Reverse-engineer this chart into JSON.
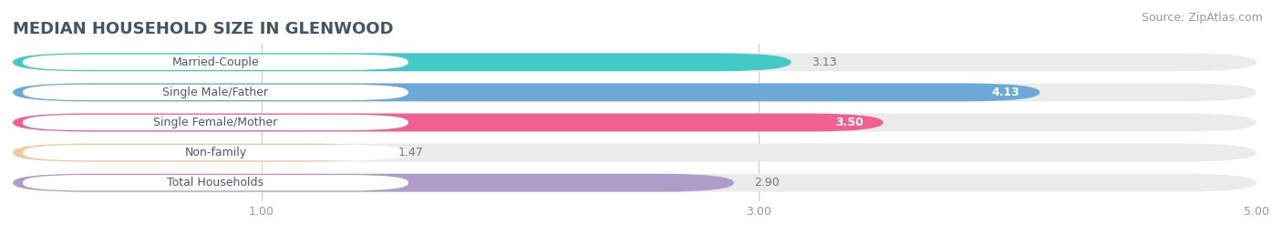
{
  "title": "MEDIAN HOUSEHOLD SIZE IN GLENWOOD",
  "source": "Source: ZipAtlas.com",
  "categories": [
    "Married-Couple",
    "Single Male/Father",
    "Single Female/Mother",
    "Non-family",
    "Total Households"
  ],
  "values": [
    3.13,
    4.13,
    3.5,
    1.47,
    2.9
  ],
  "bar_colors": [
    "#45C8C8",
    "#6BAAD8",
    "#F06090",
    "#F5C89A",
    "#B09CC8"
  ],
  "bar_bg_colors": [
    "#EBEBEB",
    "#EBEBEB",
    "#EBEBEB",
    "#EBEBEB",
    "#EBEBEB"
  ],
  "label_bg_color": "#FFFFFF",
  "label_text_color": "#555566",
  "xlim": [
    0,
    5.0
  ],
  "xticks": [
    1.0,
    3.0,
    5.0
  ],
  "title_fontsize": 13,
  "source_fontsize": 9,
  "label_fontsize": 9,
  "value_fontsize": 9,
  "background_color": "#FFFFFF"
}
